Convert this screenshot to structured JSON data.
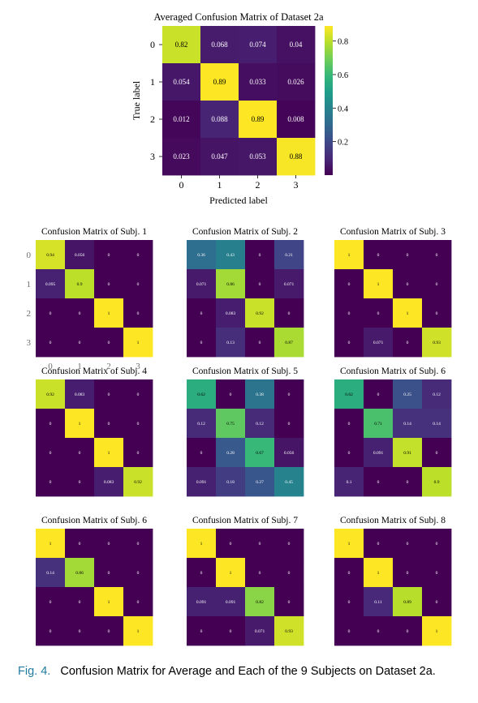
{
  "caption": {
    "label": "Fig. 4.",
    "text": "Confusion Matrix for Average and Each of the 9 Subjects on Dataset 2a."
  },
  "colormap": {
    "name": "viridis",
    "stops": [
      "#440154",
      "#482878",
      "#3e4989",
      "#31688e",
      "#26828e",
      "#1f9e89",
      "#35b779",
      "#6ece58",
      "#b5de2b",
      "#fde725"
    ]
  },
  "chart_data": [
    {
      "type": "heatmap",
      "title": "Averaged Confusion Matrix of Dataset 2a",
      "xlabel": "Predicted label",
      "ylabel": "True label",
      "x_ticks": [
        "0",
        "1",
        "2",
        "3"
      ],
      "y_ticks": [
        "0",
        "1",
        "2",
        "3"
      ],
      "values": [
        [
          "0.82",
          "0.068",
          "0.074",
          "0.04"
        ],
        [
          "0.054",
          "0.89",
          "0.033",
          "0.026"
        ],
        [
          "0.012",
          "0.088",
          "0.89",
          "0.008"
        ],
        [
          "0.023",
          "0.047",
          "0.053",
          "0.88"
        ]
      ],
      "colorbar": {
        "ticks": [
          "0.8",
          "0.6",
          "0.4",
          "0.2"
        ],
        "range": [
          0,
          0.89
        ]
      }
    },
    {
      "type": "heatmap",
      "title": "Confusion Matrix of Subj. 1",
      "x_ticks": [
        "0",
        "1",
        "2",
        "3"
      ],
      "y_ticks": [
        "0",
        "1",
        "2",
        "3"
      ],
      "values": [
        [
          "0.94",
          "0.056",
          "0",
          "0"
        ],
        [
          "0.095",
          "0.9",
          "0",
          "0"
        ],
        [
          "0",
          "0",
          "1",
          "0"
        ],
        [
          "0",
          "0",
          "0",
          "1"
        ]
      ]
    },
    {
      "type": "heatmap",
      "title": "Confusion Matrix of Subj. 2",
      "values": [
        [
          "0.36",
          "0.43",
          "0",
          "0.21"
        ],
        [
          "0.071",
          "0.86",
          "0",
          "0.071"
        ],
        [
          "0",
          "0.083",
          "0.92",
          "0"
        ],
        [
          "0",
          "0.13",
          "0",
          "0.87"
        ]
      ]
    },
    {
      "type": "heatmap",
      "title": "Confusion Matrix of Subj. 3",
      "values": [
        [
          "1",
          "0",
          "0",
          "0"
        ],
        [
          "0",
          "1",
          "0",
          "0"
        ],
        [
          "0",
          "0",
          "1",
          "0"
        ],
        [
          "0",
          "0.071",
          "0",
          "0.93"
        ]
      ]
    },
    {
      "type": "heatmap",
      "title": "Confusion Matrix of Subj. 4",
      "values": [
        [
          "0.92",
          "0.083",
          "0",
          "0"
        ],
        [
          "0",
          "1",
          "0",
          "0"
        ],
        [
          "0",
          "0",
          "1",
          "0"
        ],
        [
          "0",
          "0",
          "0.083",
          "0.92"
        ]
      ]
    },
    {
      "type": "heatmap",
      "title": "Confusion Matrix of Subj. 5",
      "values": [
        [
          "0.62",
          "0",
          "0.38",
          "0"
        ],
        [
          "0.12",
          "0.75",
          "0.12",
          "0"
        ],
        [
          "0",
          "0.28",
          "0.67",
          "0.056"
        ],
        [
          "0.091",
          "0.18",
          "0.27",
          "0.45"
        ]
      ]
    },
    {
      "type": "heatmap",
      "title": "Confusion Matrix of Subj. 6",
      "values": [
        [
          "0.62",
          "0",
          "0.25",
          "0.12"
        ],
        [
          "0",
          "0.71",
          "0.14",
          "0.14"
        ],
        [
          "0",
          "0.091",
          "0.91",
          "0"
        ],
        [
          "0.1",
          "0",
          "0",
          "0.9"
        ]
      ]
    },
    {
      "type": "heatmap",
      "title": "Confusion Matrix of Subj. 6",
      "values": [
        [
          "1",
          "0",
          "0",
          "0"
        ],
        [
          "0.14",
          "0.86",
          "0",
          "0"
        ],
        [
          "0",
          "0",
          "1",
          "0"
        ],
        [
          "0",
          "0",
          "0",
          "1"
        ]
      ]
    },
    {
      "type": "heatmap",
      "title": "Confusion Matrix of Subj. 7",
      "values": [
        [
          "1",
          "0",
          "0",
          "0"
        ],
        [
          "0",
          "1",
          "0",
          "0"
        ],
        [
          "0.091",
          "0.091",
          "0.82",
          "0"
        ],
        [
          "0",
          "0",
          "0.071",
          "0.93"
        ]
      ]
    },
    {
      "type": "heatmap",
      "title": "Confusion Matrix of Subj. 8",
      "values": [
        [
          "1",
          "0",
          "0",
          "0"
        ],
        [
          "0",
          "1",
          "0",
          "0"
        ],
        [
          "0",
          "0.11",
          "0.89",
          "0"
        ],
        [
          "0",
          "0",
          "0",
          "1"
        ]
      ]
    }
  ]
}
